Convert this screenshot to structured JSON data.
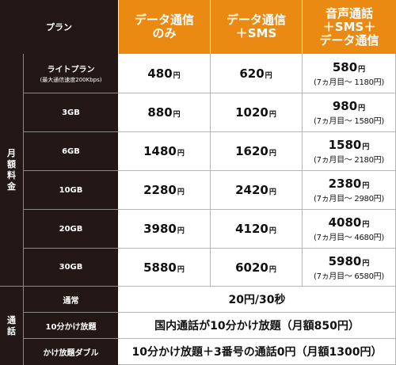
{
  "header": {
    "plan_label": "プラン",
    "col1": [
      "データ通信",
      "のみ"
    ],
    "col2": [
      "データ通信",
      "＋SMS"
    ],
    "col3": [
      "音声通話",
      "＋SMS＋",
      "データ通信"
    ]
  },
  "side": {
    "monthly": [
      "月",
      "額",
      "料",
      "金"
    ],
    "calls": [
      "通",
      "話"
    ]
  },
  "unit": "円",
  "plans": [
    {
      "name": "ライトプラン",
      "sub": "(最大通信速度200Kbps)",
      "data": "480",
      "sms": "620",
      "voice": "580",
      "voice_note": "(7ヵ月目〜 1180円)"
    },
    {
      "name": "3GB",
      "data": "880",
      "sms": "1020",
      "voice": "980",
      "voice_note": "(7ヵ月目〜 1580円)"
    },
    {
      "name": "6GB",
      "data": "1480",
      "sms": "1620",
      "voice": "1580",
      "voice_note": "(7ヵ月目〜 2180円)"
    },
    {
      "name": "10GB",
      "data": "2280",
      "sms": "2420",
      "voice": "2380",
      "voice_note": "(7ヵ月目〜 2980円)"
    },
    {
      "name": "20GB",
      "data": "3980",
      "sms": "4120",
      "voice": "4080",
      "voice_note": "(7ヵ月目〜 4680円)"
    },
    {
      "name": "30GB",
      "data": "5880",
      "sms": "6020",
      "voice": "5980",
      "voice_note": "(7ヵ月目〜 6580円)"
    }
  ],
  "calls": [
    {
      "label": "通常",
      "value": "20円/30秒"
    },
    {
      "label": "10分かけ放題",
      "value": "国内通話が10分かけ放題（月額850円）"
    },
    {
      "label": "かけ放題ダブル",
      "value": "10分かけ放題＋3番号の通話0円（月額1300円）"
    }
  ]
}
